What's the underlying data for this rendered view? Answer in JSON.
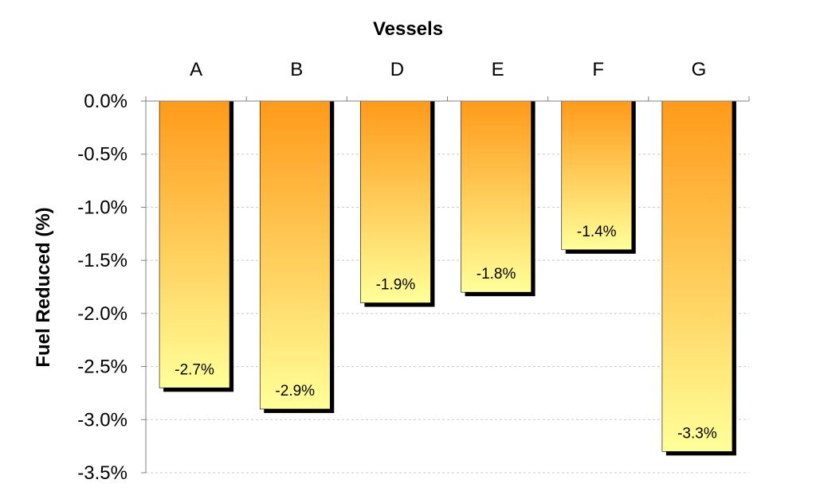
{
  "chart_data": {
    "type": "bar",
    "title": "Vessels",
    "xlabel": "Vessels",
    "ylabel": "Fuel Reduced (%)",
    "categories": [
      "A",
      "B",
      "D",
      "E",
      "F",
      "G"
    ],
    "values": [
      -2.7,
      -2.9,
      -1.9,
      -1.8,
      -1.4,
      -3.3
    ],
    "data_labels": [
      "-2.7%",
      "-2.9%",
      "-1.9%",
      "-1.8%",
      "-1.4%",
      "-3.3%"
    ],
    "ylim": [
      -3.5,
      0
    ],
    "yticks": [
      0,
      -0.5,
      -1.0,
      -1.5,
      -2.0,
      -2.5,
      -3.0,
      -3.5
    ],
    "ytick_labels": [
      "0.0%",
      "-0.5%",
      "-1.0%",
      "-1.5%",
      "-2.0%",
      "-2.5%",
      "-3.0%",
      "-3.5%"
    ],
    "x_axis_position": "top",
    "grid": true,
    "legend": "none",
    "colors": {
      "bar_top": "#ff9a1a",
      "bar_bottom": "#ffff99",
      "bar_shadow": "#000000",
      "grid": "#c8c8c8",
      "axis": "#808080"
    }
  }
}
